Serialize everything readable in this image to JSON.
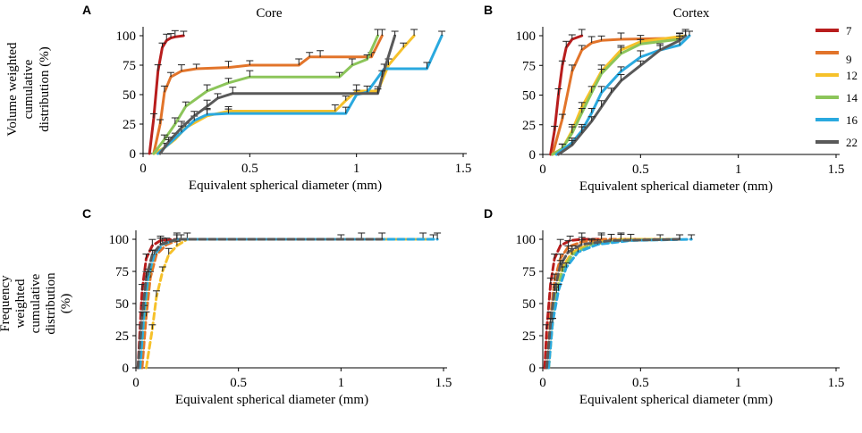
{
  "figure": {
    "panel_letters": [
      "A",
      "B",
      "C",
      "D"
    ],
    "ylabel_top": [
      "Volume weighted",
      "cumulative",
      "distribution (%)"
    ],
    "ylabel_bottom": [
      "Frequency",
      "weighted",
      "cumulative",
      "distribution",
      "(%)"
    ]
  },
  "legend": {
    "entries": [
      {
        "label": "7",
        "color": "#b81d1d"
      },
      {
        "label": "9",
        "color": "#e2742a"
      },
      {
        "label": "12",
        "color": "#f6c12a"
      },
      {
        "label": "14",
        "color": "#8cc55a"
      },
      {
        "label": "16",
        "color": "#2aa9df"
      },
      {
        "label": "22",
        "color": "#595959"
      }
    ]
  },
  "chart_data": [
    {
      "panel": "A",
      "type": "line",
      "title": "Core",
      "xlabel": "Equivalent spherical diameter (mm)",
      "ylabel": "Volume weighted cumulative distribution (%)",
      "xlim": [
        0,
        1.5
      ],
      "ylim": [
        0,
        100
      ],
      "xticks": [
        "0",
        "0.5",
        "1",
        "1.5"
      ],
      "yticks": [
        "0",
        "25",
        "50",
        "75",
        "100"
      ],
      "line_style": "solid",
      "series": [
        {
          "name": "7",
          "x": [
            0.03,
            0.05,
            0.07,
            0.09,
            0.11,
            0.13,
            0.15,
            0.19
          ],
          "y": [
            0,
            30,
            70,
            90,
            96,
            98,
            99,
            100
          ]
        },
        {
          "name": "9",
          "x": [
            0.05,
            0.08,
            0.1,
            0.13,
            0.18,
            0.25,
            0.4,
            0.5,
            0.73,
            0.78,
            0.83,
            1.07,
            1.12
          ],
          "y": [
            0,
            25,
            52,
            65,
            70,
            72,
            73,
            75,
            75,
            82,
            82,
            82,
            100
          ]
        },
        {
          "name": "12",
          "x": [
            0.05,
            0.1,
            0.15,
            0.2,
            0.3,
            0.4,
            0.9,
            0.95,
            1.0,
            1.1,
            1.15,
            1.22,
            1.27
          ],
          "y": [
            0,
            5,
            12,
            22,
            32,
            36,
            36,
            45,
            53,
            53,
            75,
            90,
            100
          ]
        },
        {
          "name": "14",
          "x": [
            0.05,
            0.1,
            0.15,
            0.2,
            0.3,
            0.4,
            0.5,
            0.92,
            0.98,
            1.05,
            1.1
          ],
          "y": [
            0,
            12,
            25,
            40,
            53,
            60,
            65,
            65,
            75,
            80,
            100
          ]
        },
        {
          "name": "16",
          "x": [
            0.07,
            0.12,
            0.18,
            0.24,
            0.3,
            0.4,
            0.95,
            1.0,
            1.05,
            1.13,
            1.33,
            1.4
          ],
          "y": [
            0,
            8,
            18,
            28,
            33,
            34,
            34,
            50,
            52,
            72,
            72,
            100
          ]
        },
        {
          "name": "22",
          "x": [
            0.08,
            0.12,
            0.18,
            0.24,
            0.3,
            0.35,
            0.42,
            1.1,
            1.12,
            1.18
          ],
          "y": [
            0,
            10,
            22,
            32,
            40,
            47,
            51,
            51,
            65,
            100
          ]
        }
      ]
    },
    {
      "panel": "B",
      "type": "line",
      "title": "Cortex",
      "xlabel": "Equivalent spherical diameter (mm)",
      "ylabel": "",
      "xlim": [
        0,
        1.5
      ],
      "ylim": [
        0,
        100
      ],
      "xticks": [
        "0",
        "0.5",
        "1",
        "1.5"
      ],
      "yticks": [
        "0",
        "25",
        "50",
        "75",
        "100"
      ],
      "line_style": "solid",
      "series": [
        {
          "name": "7",
          "x": [
            0.04,
            0.06,
            0.08,
            0.1,
            0.12,
            0.15,
            0.2
          ],
          "y": [
            0,
            20,
            50,
            75,
            90,
            97,
            100
          ]
        },
        {
          "name": "9",
          "x": [
            0.05,
            0.1,
            0.15,
            0.2,
            0.25,
            0.3,
            0.4,
            0.7
          ],
          "y": [
            0,
            30,
            70,
            88,
            94,
            96,
            97,
            98
          ]
        },
        {
          "name": "12",
          "x": [
            0.05,
            0.1,
            0.15,
            0.2,
            0.3,
            0.4,
            0.5,
            0.73
          ],
          "y": [
            0,
            5,
            20,
            40,
            70,
            88,
            95,
            100
          ]
        },
        {
          "name": "14",
          "x": [
            0.05,
            0.1,
            0.15,
            0.2,
            0.25,
            0.3,
            0.4,
            0.5,
            0.7
          ],
          "y": [
            0,
            5,
            18,
            35,
            52,
            68,
            85,
            93,
            97
          ]
        },
        {
          "name": "16",
          "x": [
            0.07,
            0.15,
            0.2,
            0.25,
            0.3,
            0.4,
            0.5,
            0.6,
            0.7,
            0.75
          ],
          "y": [
            0,
            10,
            20,
            35,
            52,
            70,
            82,
            88,
            92,
            100
          ]
        },
        {
          "name": "22",
          "x": [
            0.08,
            0.15,
            0.2,
            0.25,
            0.3,
            0.35,
            0.4,
            0.5,
            0.6,
            0.7,
            0.73
          ],
          "y": [
            0,
            8,
            18,
            28,
            40,
            52,
            62,
            75,
            88,
            96,
            100
          ]
        }
      ]
    },
    {
      "panel": "C",
      "type": "line",
      "title": "",
      "xlabel": "Equivalent spherical diameter (mm)",
      "ylabel": "Frequency weighted cumulative distribution (%)",
      "xlim": [
        0,
        1.5
      ],
      "ylim": [
        0,
        100
      ],
      "xticks": [
        "0",
        "0.5",
        "1",
        "1.5"
      ],
      "yticks": [
        "0",
        "25",
        "50",
        "75",
        "100"
      ],
      "line_style": "dashed",
      "series": [
        {
          "name": "7",
          "x": [
            0.01,
            0.02,
            0.03,
            0.05,
            0.08,
            0.12,
            0.2,
            1.0
          ],
          "y": [
            0,
            30,
            60,
            85,
            95,
            99,
            100,
            100
          ]
        },
        {
          "name": "9",
          "x": [
            0.03,
            0.05,
            0.07,
            0.1,
            0.15,
            0.22,
            1.4
          ],
          "y": [
            0,
            40,
            70,
            88,
            96,
            100,
            100
          ]
        },
        {
          "name": "12",
          "x": [
            0.05,
            0.08,
            0.1,
            0.13,
            0.16,
            0.2,
            0.25,
            1.45
          ],
          "y": [
            0,
            30,
            55,
            75,
            88,
            95,
            100,
            100
          ]
        },
        {
          "name": "14",
          "x": [
            0.02,
            0.04,
            0.06,
            0.09,
            0.13,
            0.2,
            1.1
          ],
          "y": [
            0,
            40,
            70,
            88,
            96,
            100,
            100
          ]
        },
        {
          "name": "16",
          "x": [
            0.02,
            0.04,
            0.06,
            0.09,
            0.13,
            0.2,
            1.47
          ],
          "y": [
            0,
            45,
            72,
            88,
            96,
            100,
            100
          ]
        },
        {
          "name": "22",
          "x": [
            0.01,
            0.03,
            0.05,
            0.08,
            0.12,
            0.2,
            1.2
          ],
          "y": [
            0,
            40,
            70,
            88,
            96,
            100,
            100
          ]
        }
      ]
    },
    {
      "panel": "D",
      "type": "line",
      "title": "",
      "xlabel": "Equivalent spherical diameter (mm)",
      "ylabel": "",
      "xlim": [
        0,
        1.5
      ],
      "ylim": [
        0,
        100
      ],
      "xticks": [
        "0",
        "0.5",
        "1",
        "1.5"
      ],
      "yticks": [
        "0",
        "25",
        "50",
        "75",
        "100"
      ],
      "line_style": "dashed",
      "series": [
        {
          "name": "7",
          "x": [
            0.01,
            0.02,
            0.04,
            0.06,
            0.09,
            0.14,
            0.2,
            0.3
          ],
          "y": [
            0,
            30,
            65,
            85,
            95,
            99,
            100,
            100
          ]
        },
        {
          "name": "9",
          "x": [
            0.02,
            0.04,
            0.06,
            0.09,
            0.13,
            0.2,
            0.3,
            0.6
          ],
          "y": [
            0,
            40,
            68,
            85,
            94,
            98,
            100,
            100
          ]
        },
        {
          "name": "12",
          "x": [
            0.03,
            0.05,
            0.07,
            0.1,
            0.15,
            0.25,
            0.4,
            0.7
          ],
          "y": [
            0,
            35,
            60,
            78,
            90,
            97,
            100,
            100
          ]
        },
        {
          "name": "14",
          "x": [
            0.03,
            0.05,
            0.07,
            0.1,
            0.15,
            0.25,
            0.4,
            0.7
          ],
          "y": [
            0,
            35,
            58,
            75,
            88,
            96,
            99,
            100
          ]
        },
        {
          "name": "16",
          "x": [
            0.03,
            0.05,
            0.08,
            0.12,
            0.18,
            0.28,
            0.45,
            0.76
          ],
          "y": [
            0,
            35,
            60,
            78,
            90,
            96,
            99,
            100
          ]
        },
        {
          "name": "22",
          "x": [
            0.02,
            0.04,
            0.06,
            0.09,
            0.13,
            0.2,
            0.35,
            0.7
          ],
          "y": [
            0,
            35,
            60,
            80,
            90,
            96,
            99,
            100
          ]
        }
      ]
    }
  ]
}
